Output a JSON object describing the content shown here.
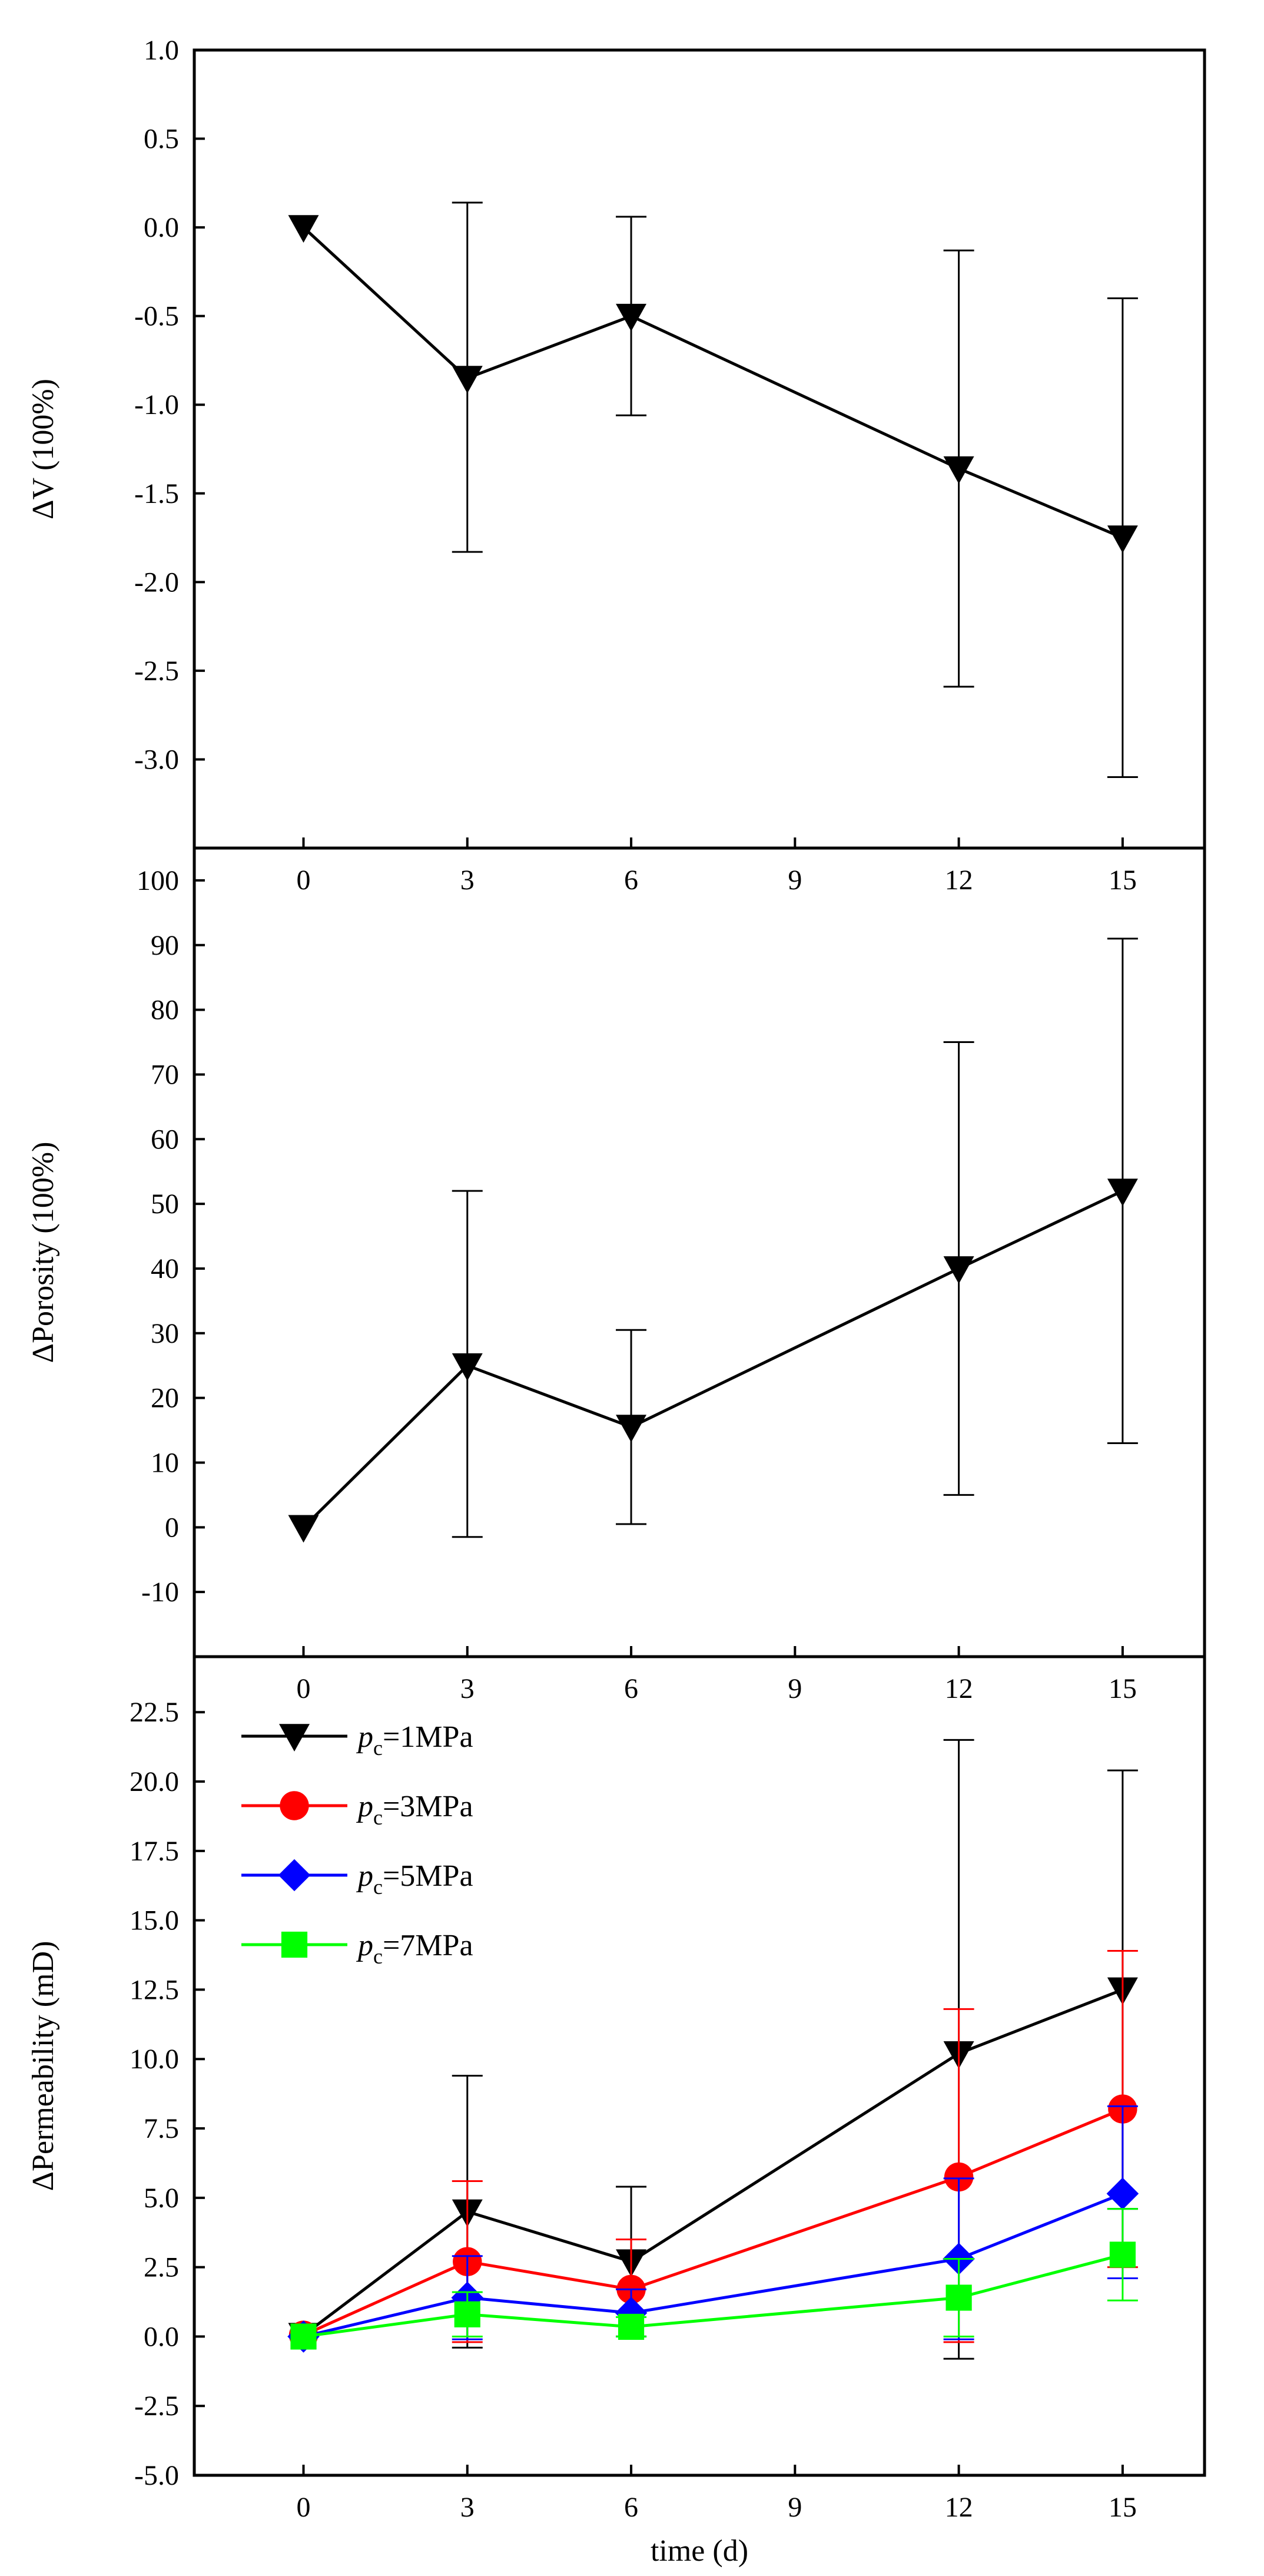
{
  "chart_data": [
    {
      "type": "line",
      "title": "",
      "xlabel": "",
      "ylabel": "ΔV (100%)",
      "xlim": [
        -2,
        16.5
      ],
      "ylim": [
        -3.5,
        1.0
      ],
      "x_ticks": [
        "0",
        "3",
        "6",
        "9",
        "12",
        "15"
      ],
      "y_ticks": [
        "-3.0",
        "-2.5",
        "-2.0",
        "-1.5",
        "-1.0",
        "-0.5",
        "0.0",
        "0.5",
        "1.0"
      ],
      "series": [
        {
          "name": "",
          "color": "#000000",
          "marker": "triangle-down",
          "x": [
            0,
            3,
            6,
            12,
            15
          ],
          "values": [
            0.0,
            -0.85,
            -0.5,
            -1.36,
            -1.75
          ],
          "err_upper": [
            0.0,
            0.14,
            0.06,
            -0.13,
            -0.4
          ],
          "err_lower": [
            0.0,
            -1.83,
            -1.06,
            -2.59,
            -3.1
          ]
        }
      ]
    },
    {
      "type": "line",
      "title": "",
      "xlabel": "",
      "ylabel": "ΔPorosity (100%)",
      "xlim": [
        -2,
        16.5
      ],
      "ylim": [
        -20,
        105
      ],
      "x_ticks": [
        "0",
        "3",
        "6",
        "9",
        "12",
        "15"
      ],
      "y_ticks": [
        "-10",
        "0",
        "10",
        "20",
        "30",
        "40",
        "50",
        "60",
        "70",
        "80",
        "90",
        "100"
      ],
      "series": [
        {
          "name": "",
          "color": "#000000",
          "marker": "triangle-down",
          "x": [
            0,
            3,
            6,
            12,
            15
          ],
          "values": [
            0,
            25,
            15.5,
            40,
            52
          ],
          "err_upper": [
            0,
            52,
            30.5,
            75,
            91
          ],
          "err_lower": [
            0,
            -1.5,
            0.5,
            5,
            13
          ]
        }
      ]
    },
    {
      "type": "line",
      "title": "",
      "xlabel": "time (d)",
      "ylabel": "ΔPermeability (mD)",
      "xlim": [
        -2,
        16.5
      ],
      "ylim": [
        -5.0,
        24.5
      ],
      "x_ticks": [
        "0",
        "3",
        "6",
        "9",
        "12",
        "15"
      ],
      "y_ticks": [
        "-5.0",
        "-2.5",
        "0.0",
        "2.5",
        "5.0",
        "7.5",
        "10.0",
        "12.5",
        "15.0",
        "17.5",
        "20.0",
        "22.5"
      ],
      "legend_position": "top-left",
      "series": [
        {
          "name": "1MPa",
          "legend_prefix": "p",
          "legend_sub": "c",
          "legend_eq": "=",
          "color": "#000000",
          "marker": "triangle-down",
          "x": [
            0,
            3,
            6,
            12,
            15
          ],
          "values": [
            0.05,
            4.5,
            2.7,
            10.2,
            12.5
          ],
          "err_upper": [
            0.05,
            9.4,
            5.4,
            21.5,
            20.4
          ],
          "err_lower": [
            0.05,
            -0.4,
            0.0,
            -0.8,
            4.6
          ]
        },
        {
          "name": "3MPa",
          "legend_prefix": "p",
          "legend_sub": "c",
          "legend_eq": "=",
          "color": "#ff0000",
          "marker": "circle",
          "x": [
            0,
            3,
            6,
            12,
            15
          ],
          "values": [
            0.05,
            2.7,
            1.7,
            5.75,
            8.2
          ],
          "err_upper": [
            0.05,
            5.6,
            3.5,
            11.8,
            13.9
          ],
          "err_lower": [
            0.05,
            -0.2,
            0.0,
            -0.2,
            2.5
          ]
        },
        {
          "name": "5MPa",
          "legend_prefix": "p",
          "legend_sub": "c",
          "legend_eq": "=",
          "color": "#0000ff",
          "marker": "diamond",
          "x": [
            0,
            3,
            6,
            12,
            15
          ],
          "values": [
            0.0,
            1.4,
            0.85,
            2.8,
            5.15
          ],
          "err_upper": [
            0.0,
            2.9,
            1.7,
            5.7,
            8.3
          ],
          "err_lower": [
            0.0,
            -0.1,
            0.0,
            -0.1,
            2.1
          ]
        },
        {
          "name": "7MPa",
          "legend_prefix": "p",
          "legend_sub": "c",
          "legend_eq": "=",
          "color": "#00ff00",
          "marker": "square",
          "x": [
            0,
            3,
            6,
            12,
            15
          ],
          "values": [
            0.0,
            0.8,
            0.35,
            1.4,
            2.95
          ],
          "err_upper": [
            0.0,
            1.6,
            0.7,
            2.8,
            4.6
          ],
          "err_lower": [
            0.0,
            0.0,
            0.0,
            0.0,
            1.3
          ]
        }
      ]
    }
  ]
}
